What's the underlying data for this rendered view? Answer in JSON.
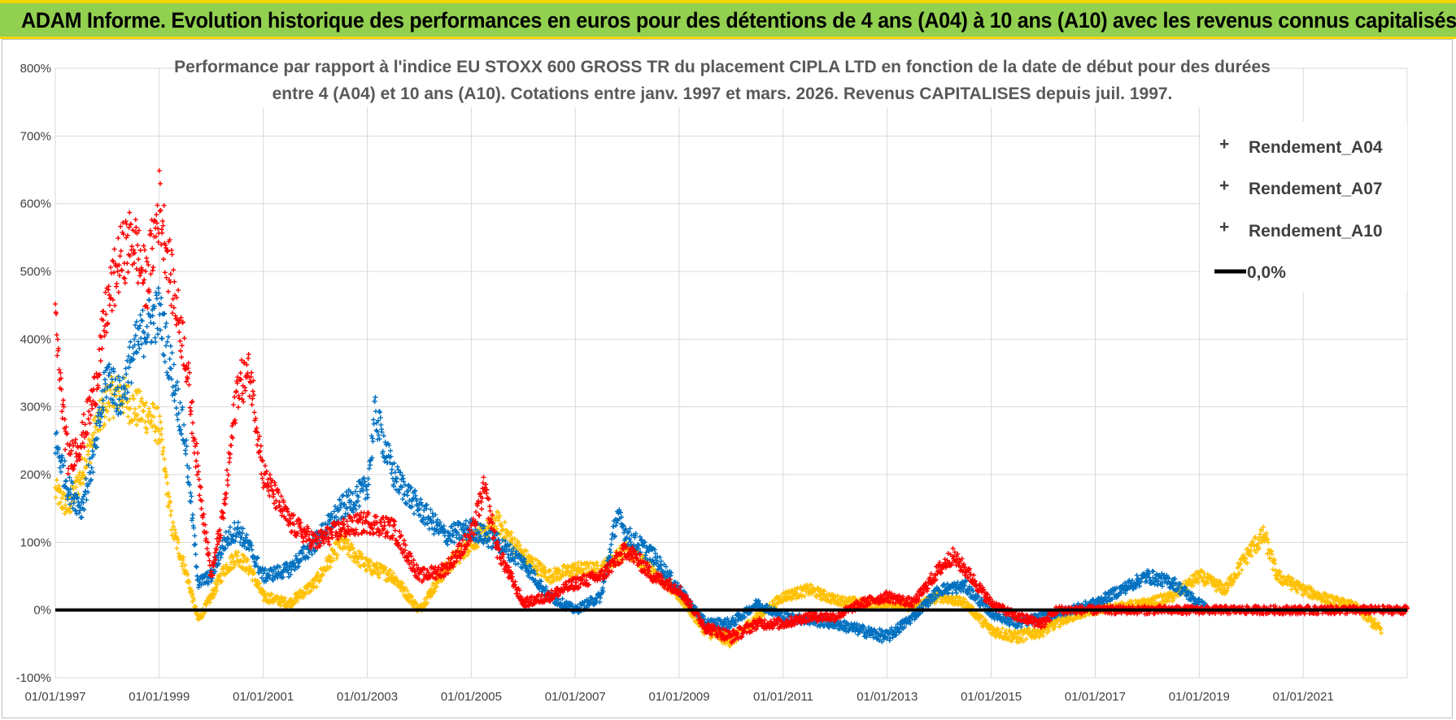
{
  "banner": {
    "title": "ADAM Informe. Evolution historique des performances en euros pour des détentions de 4 ans (A04) à 10 ans (A10) avec les revenus connus capitalisés"
  },
  "colors": {
    "banner_bg": "#92d050",
    "banner_border": "#f2d600",
    "A04": "#ffc000",
    "A07": "#0070c0",
    "A10": "#ff0000",
    "zero": "#000000",
    "grid": "#d9d9d9"
  },
  "chart_data": {
    "type": "scatter",
    "title_lines": [
      "Performance par rapport à l'indice EU STOXX 600 GROSS TR  du placement CIPLA LTD en fonction de la date de début pour des durées",
      "entre 4 (A04) et 10 ans (A10).  Cotations entre janv. 1997 et mars. 2026.  Revenus CAPITALISES depuis juil. 1997."
    ],
    "xlabel": "",
    "ylabel": "",
    "x_range": [
      1997.0,
      2023.0
    ],
    "ylim": [
      -100,
      800
    ],
    "y_ticks": [
      -100,
      0,
      100,
      200,
      300,
      400,
      500,
      600,
      700,
      800
    ],
    "y_tick_labels": [
      "-100%",
      "0%",
      "100%",
      "200%",
      "300%",
      "400%",
      "500%",
      "600%",
      "700%",
      "800%"
    ],
    "x_ticks": [
      1997,
      1999,
      2001,
      2003,
      2005,
      2007,
      2009,
      2011,
      2013,
      2015,
      2017,
      2019,
      2021
    ],
    "x_tick_labels": [
      "01/01/1997",
      "01/01/1999",
      "01/01/2001",
      "01/01/2003",
      "01/01/2005",
      "01/01/2007",
      "01/01/2009",
      "01/01/2011",
      "01/01/2013",
      "01/01/2015",
      "01/01/2017",
      "01/01/2019",
      "01/01/2021"
    ],
    "grid": true,
    "legend_position": "top-right",
    "reference_line": {
      "name": "0,0%",
      "value": 0
    },
    "series": [
      {
        "name": "Rendement_A04",
        "x": [
          1997.0,
          1997.25,
          1997.5,
          1997.75,
          1998.0,
          1998.25,
          1998.5,
          1998.75,
          1999.0,
          1999.25,
          1999.5,
          1999.75,
          2000.0,
          2000.25,
          2000.5,
          2000.75,
          2001.0,
          2001.5,
          2002.0,
          2002.5,
          2003.0,
          2003.5,
          2004.0,
          2004.5,
          2005.0,
          2005.5,
          2006.0,
          2006.5,
          2007.0,
          2007.5,
          2008.0,
          2008.5,
          2009.0,
          2009.5,
          2010.0,
          2010.5,
          2011.0,
          2011.5,
          2012.0,
          2012.5,
          2013.0,
          2013.5,
          2014.0,
          2014.5,
          2015.0,
          2015.5,
          2016.0,
          2016.5,
          2017.0,
          2017.5,
          2018.0,
          2018.5,
          2019.0,
          2019.5,
          2020.0,
          2020.25,
          2020.5,
          2021.0,
          2021.5,
          2022.0,
          2022.5
        ],
        "values": [
          175,
          150,
          200,
          260,
          310,
          320,
          300,
          290,
          270,
          120,
          60,
          -15,
          20,
          60,
          80,
          60,
          20,
          10,
          40,
          100,
          65,
          50,
          0,
          60,
          100,
          130,
          80,
          50,
          60,
          60,
          90,
          60,
          20,
          -30,
          -45,
          -10,
          20,
          30,
          15,
          10,
          10,
          5,
          20,
          10,
          -30,
          -40,
          -30,
          -10,
          0,
          5,
          10,
          20,
          50,
          30,
          90,
          110,
          50,
          30,
          15,
          5,
          -30
        ]
      },
      {
        "name": "Rendement_A07",
        "x": [
          1997.0,
          1997.25,
          1997.5,
          1997.75,
          1998.0,
          1998.25,
          1998.5,
          1998.75,
          1999.0,
          1999.25,
          1999.5,
          1999.75,
          2000.0,
          2000.25,
          2000.5,
          2000.75,
          2001.0,
          2001.5,
          2002.0,
          2002.5,
          2003.0,
          2003.15,
          2003.5,
          2004.0,
          2004.5,
          2005.0,
          2005.5,
          2006.0,
          2006.5,
          2007.0,
          2007.5,
          2007.8,
          2008.0,
          2008.5,
          2009.0,
          2009.5,
          2010.0,
          2010.5,
          2011.0,
          2011.5,
          2012.0,
          2012.5,
          2013.0,
          2013.5,
          2014.0,
          2014.5,
          2015.0,
          2015.5,
          2016.0,
          2016.5,
          2017.0,
          2017.5,
          2018.0,
          2018.5,
          2019.0,
          2019.2
        ],
        "values": [
          250,
          180,
          150,
          230,
          350,
          310,
          380,
          420,
          440,
          350,
          250,
          40,
          50,
          100,
          120,
          90,
          50,
          60,
          100,
          150,
          180,
          290,
          200,
          150,
          110,
          120,
          100,
          70,
          20,
          0,
          20,
          140,
          110,
          80,
          30,
          -20,
          -20,
          10,
          -10,
          -15,
          -20,
          -30,
          -40,
          -10,
          30,
          35,
          -5,
          -20,
          -10,
          0,
          10,
          30,
          50,
          40,
          10,
          0
        ]
      },
      {
        "name": "Rendement_A10",
        "x": [
          1997.0,
          1997.1,
          1997.25,
          1997.5,
          1997.75,
          1998.0,
          1998.25,
          1998.5,
          1998.75,
          1999.0,
          1999.25,
          1999.5,
          1999.75,
          2000.0,
          2000.25,
          2000.5,
          2000.75,
          2001.0,
          2001.5,
          2002.0,
          2002.5,
          2003.0,
          2003.5,
          2004.0,
          2004.5,
          2005.0,
          2005.25,
          2005.5,
          2006.0,
          2006.5,
          2007.0,
          2007.5,
          2008.0,
          2008.5,
          2009.0,
          2009.5,
          2010.0,
          2010.5,
          2011.0,
          2011.5,
          2012.0,
          2012.5,
          2013.0,
          2013.5,
          2014.0,
          2014.25,
          2014.5,
          2015.0,
          2015.5,
          2016.0,
          2016.25,
          2017.0,
          2018.0,
          2019.0,
          2020.0,
          2021.0,
          2022.0,
          2023.0
        ],
        "values": [
          420,
          330,
          220,
          250,
          320,
          450,
          520,
          550,
          480,
          600,
          480,
          380,
          200,
          50,
          150,
          330,
          350,
          200,
          130,
          100,
          120,
          130,
          120,
          50,
          60,
          110,
          180,
          90,
          10,
          20,
          40,
          50,
          90,
          50,
          30,
          -25,
          -40,
          -20,
          -20,
          -10,
          -10,
          10,
          20,
          10,
          60,
          80,
          60,
          10,
          -10,
          -20,
          0,
          0,
          0,
          0,
          0,
          0,
          0,
          0
        ]
      }
    ]
  }
}
